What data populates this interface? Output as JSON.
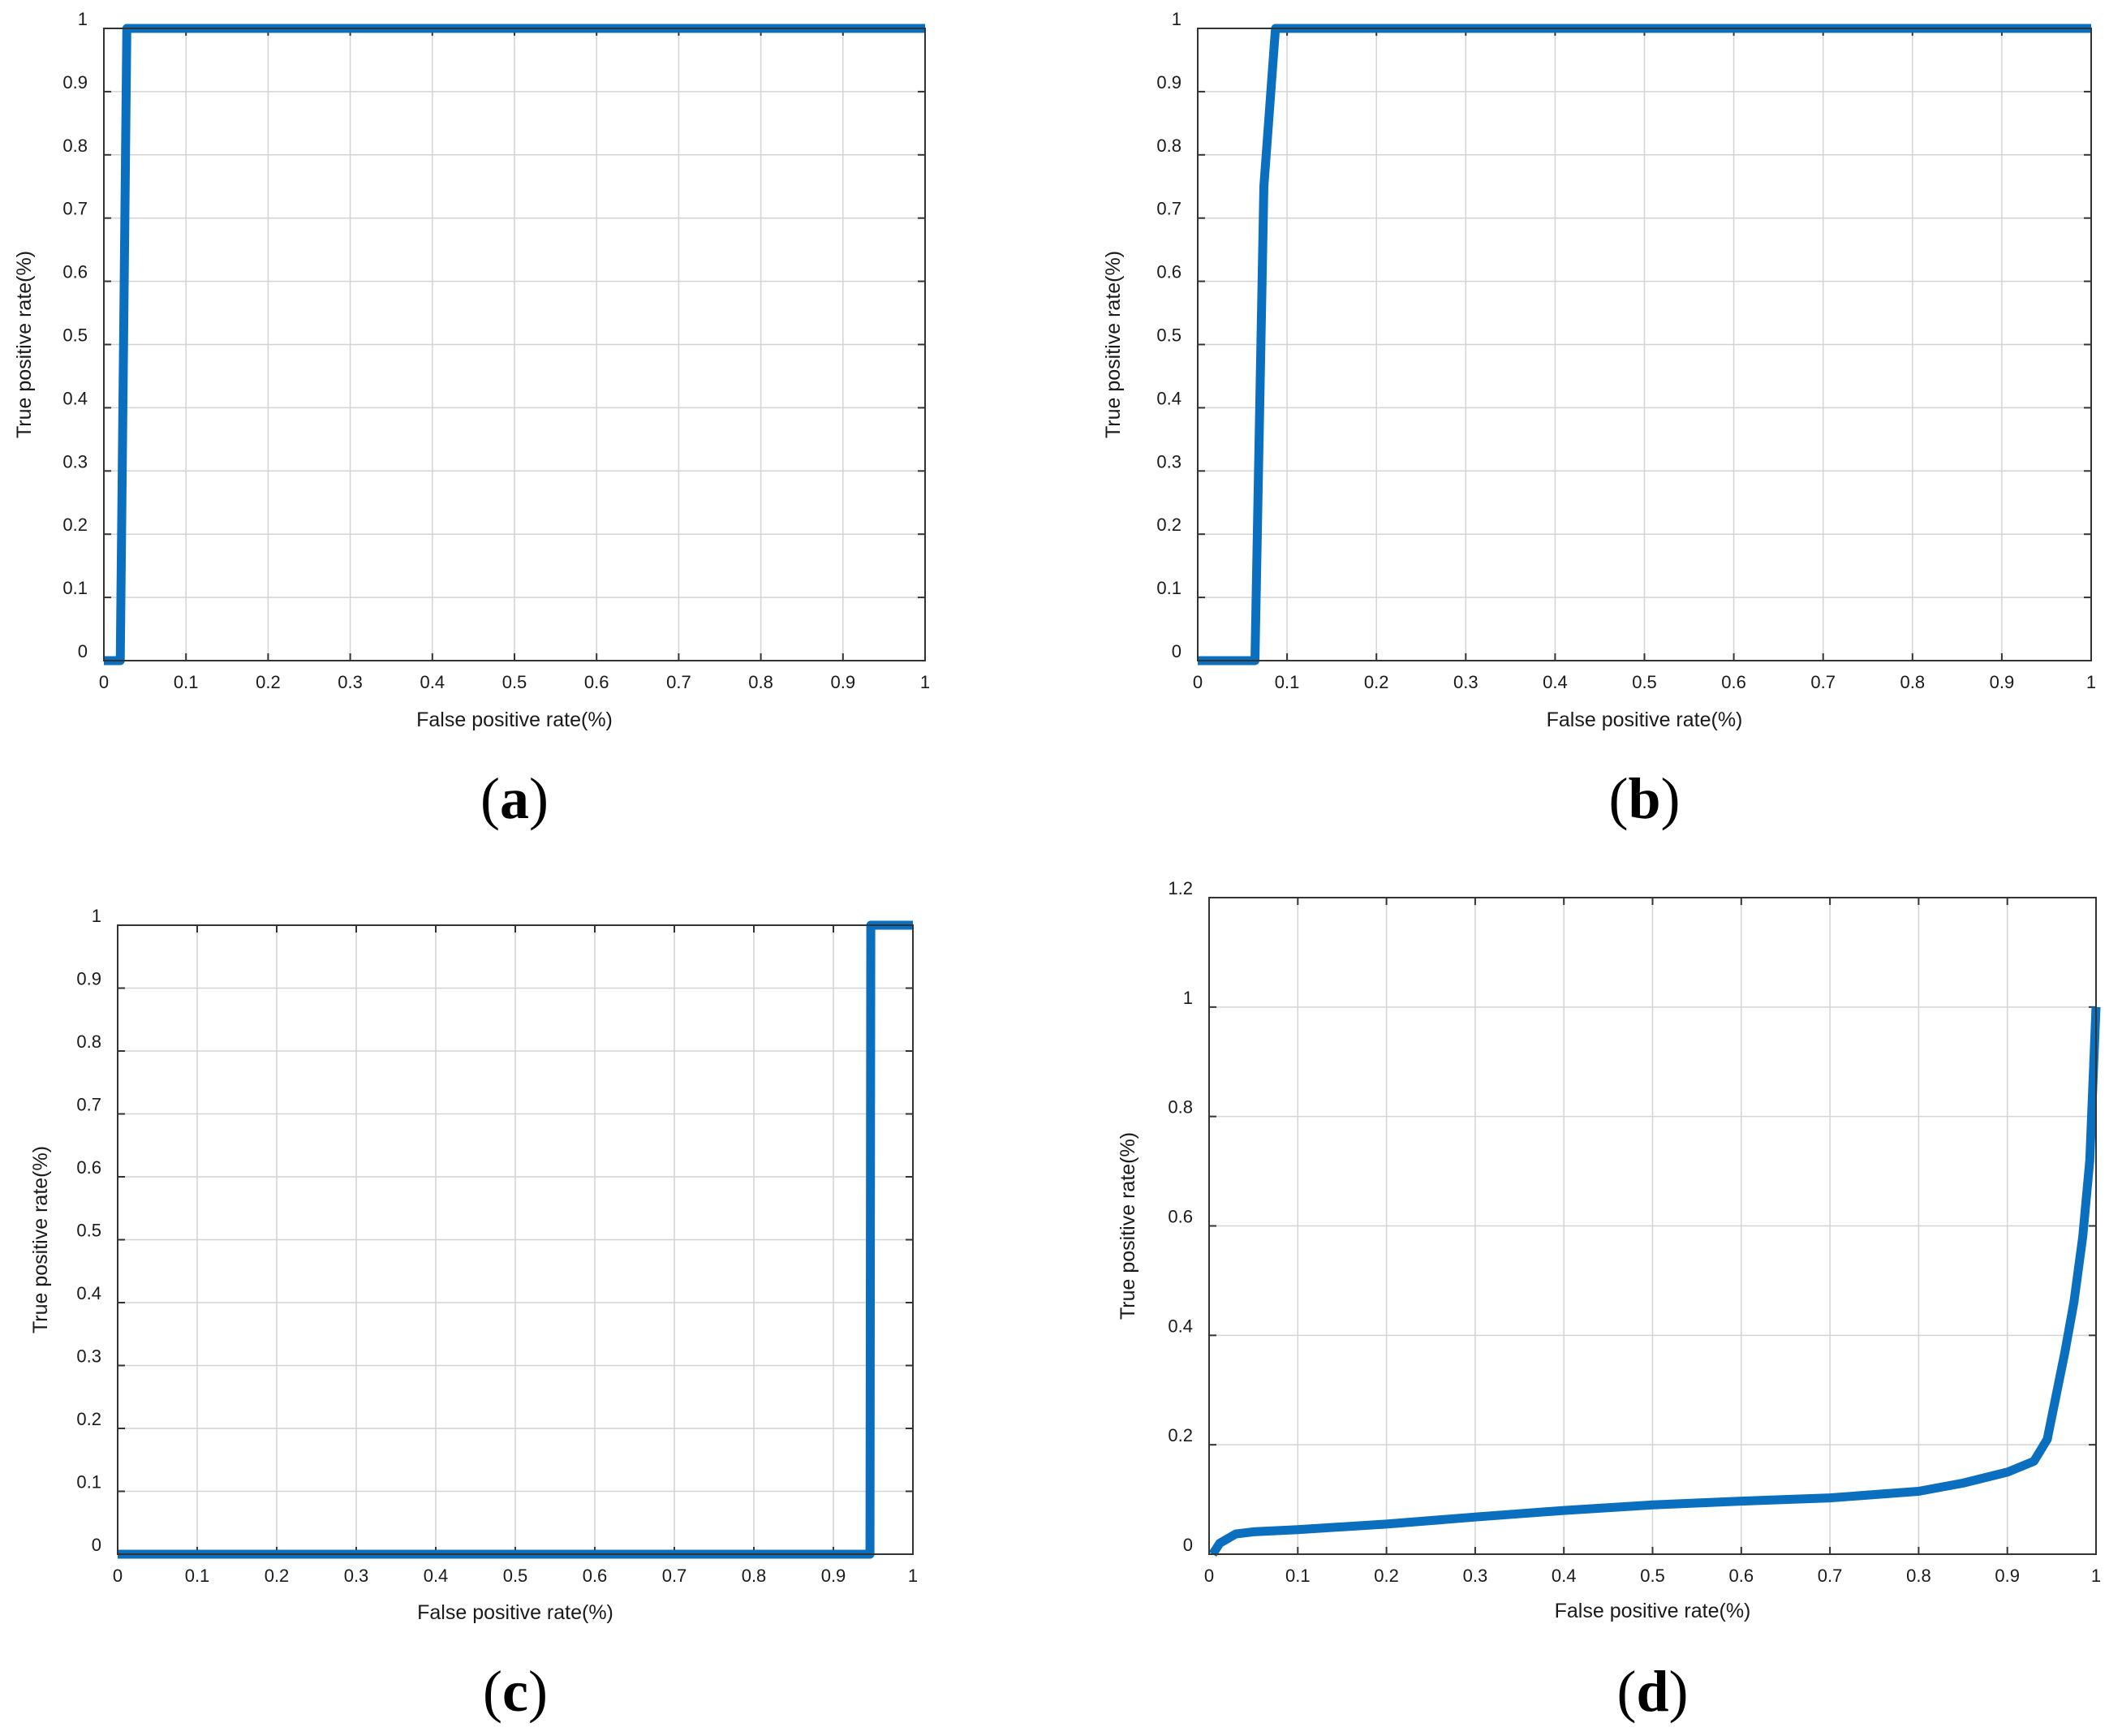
{
  "line_color": "#0b6fbf",
  "chart_data": [
    {
      "type": "line",
      "panel_label": "a",
      "xlabel": "False positive rate(%)",
      "ylabel": "True positive rate(%)",
      "xlim": [
        0,
        1
      ],
      "ylim": [
        0,
        1
      ],
      "xticks": [
        0,
        0.1,
        0.2,
        0.3,
        0.4,
        0.5,
        0.6,
        0.7,
        0.8,
        0.9,
        1
      ],
      "xtick_labels": [
        "0",
        "0.1",
        "0.2",
        "0.3",
        "0.4",
        "0.5",
        "0.6",
        "0.7",
        "0.8",
        "0.9",
        "1"
      ],
      "yticks": [
        0,
        0.1,
        0.2,
        0.3,
        0.4,
        0.5,
        0.6,
        0.7,
        0.8,
        0.9,
        1
      ],
      "ytick_labels": [
        "0",
        "0.1",
        "0.2",
        "0.3",
        "0.4",
        "0.5",
        "0.6",
        "0.7",
        "0.8",
        "0.9",
        "1"
      ],
      "grid": true,
      "series": [
        {
          "x": [
            0,
            0.02,
            0.028,
            1
          ],
          "y": [
            0,
            0,
            1,
            1
          ]
        }
      ]
    },
    {
      "type": "line",
      "panel_label": "b",
      "xlabel": "False positive rate(%)",
      "ylabel": "True positive rate(%)",
      "xlim": [
        0,
        1
      ],
      "ylim": [
        0,
        1
      ],
      "xticks": [
        0,
        0.1,
        0.2,
        0.3,
        0.4,
        0.5,
        0.6,
        0.7,
        0.8,
        0.9,
        1
      ],
      "xtick_labels": [
        "0",
        "0.1",
        "0.2",
        "0.3",
        "0.4",
        "0.5",
        "0.6",
        "0.7",
        "0.8",
        "0.9",
        "1"
      ],
      "yticks": [
        0,
        0.1,
        0.2,
        0.3,
        0.4,
        0.5,
        0.6,
        0.7,
        0.8,
        0.9,
        1
      ],
      "ytick_labels": [
        "0",
        "0.1",
        "0.2",
        "0.3",
        "0.4",
        "0.5",
        "0.6",
        "0.7",
        "0.8",
        "0.9",
        "1"
      ],
      "grid": true,
      "series": [
        {
          "x": [
            0,
            0.064,
            0.074,
            0.087,
            1
          ],
          "y": [
            0,
            0,
            0.75,
            1,
            1
          ]
        }
      ]
    },
    {
      "type": "line",
      "panel_label": "c",
      "xlabel": "False positive rate(%)",
      "ylabel": "True positive rate(%)",
      "xlim": [
        0,
        1
      ],
      "ylim": [
        0,
        1
      ],
      "xticks": [
        0,
        0.1,
        0.2,
        0.3,
        0.4,
        0.5,
        0.6,
        0.7,
        0.8,
        0.9,
        1
      ],
      "xtick_labels": [
        "0",
        "0.1",
        "0.2",
        "0.3",
        "0.4",
        "0.5",
        "0.6",
        "0.7",
        "0.8",
        "0.9",
        "1"
      ],
      "yticks": [
        0,
        0.1,
        0.2,
        0.3,
        0.4,
        0.5,
        0.6,
        0.7,
        0.8,
        0.9,
        1
      ],
      "ytick_labels": [
        "0",
        "0.1",
        "0.2",
        "0.3",
        "0.4",
        "0.5",
        "0.6",
        "0.7",
        "0.8",
        "0.9",
        "1"
      ],
      "grid": true,
      "series": [
        {
          "x": [
            0,
            0.946,
            0.947,
            1
          ],
          "y": [
            0,
            0,
            1,
            1
          ]
        }
      ]
    },
    {
      "type": "line",
      "panel_label": "d",
      "xlabel": "False positive rate(%)",
      "ylabel": "True positive rate(%)",
      "xlim": [
        0,
        1
      ],
      "ylim": [
        0,
        1.2
      ],
      "xticks": [
        0,
        0.1,
        0.2,
        0.3,
        0.4,
        0.5,
        0.6,
        0.7,
        0.8,
        0.9,
        1
      ],
      "xtick_labels": [
        "0",
        "0.1",
        "0.2",
        "0.3",
        "0.4",
        "0.5",
        "0.6",
        "0.7",
        "0.8",
        "0.9",
        "1"
      ],
      "yticks": [
        0,
        0.2,
        0.4,
        0.6,
        0.8,
        1,
        1.2
      ],
      "ytick_labels": [
        "0",
        "0.2",
        "0.4",
        "0.6",
        "0.8",
        "1",
        "1.2"
      ],
      "grid": true,
      "series": [
        {
          "x": [
            0.004,
            0.012,
            0.03,
            0.05,
            0.1,
            0.2,
            0.3,
            0.4,
            0.5,
            0.6,
            0.7,
            0.8,
            0.85,
            0.9,
            0.93,
            0.945,
            0.955,
            0.965,
            0.975,
            0.985,
            0.993,
            1
          ],
          "y": [
            0,
            0.02,
            0.037,
            0.041,
            0.045,
            0.055,
            0.068,
            0.08,
            0.09,
            0.097,
            0.103,
            0.115,
            0.13,
            0.15,
            0.17,
            0.21,
            0.29,
            0.37,
            0.46,
            0.58,
            0.72,
            1.0
          ]
        }
      ]
    }
  ]
}
